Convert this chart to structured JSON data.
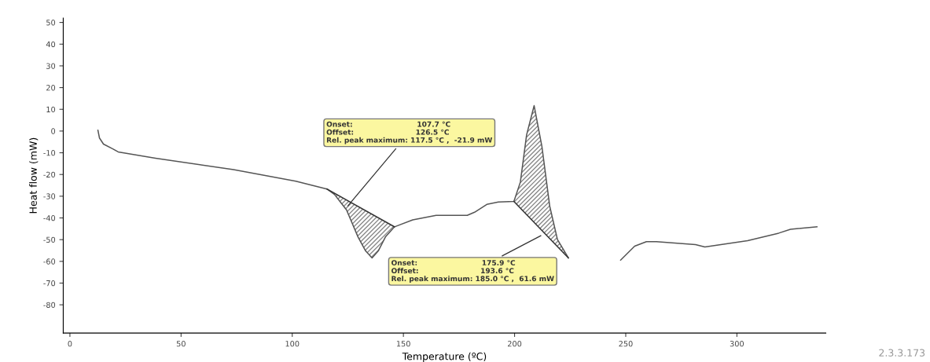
{
  "chart_data": {
    "type": "line",
    "xlabel": "Temperature (ºC)",
    "ylabel": "Heat flow (mW)",
    "xlim": [
      -3,
      340
    ],
    "ylim": [
      -93,
      52
    ],
    "xticks": [
      0,
      50,
      100,
      150,
      200,
      250,
      300
    ],
    "yticks": [
      -80,
      -70,
      -60,
      -50,
      -40,
      -30,
      -20,
      -10,
      0,
      10,
      20,
      30,
      40,
      50
    ],
    "grid": false,
    "series": [
      {
        "color": "#555555",
        "x": [
          12.6,
          13.3,
          15.1,
          19.3,
          21.7,
          38.5,
          73.6,
          101.6,
          115.6,
          119,
          124.4,
          129.6,
          133,
          135.9,
          138.7,
          141.9,
          146,
          154.2,
          164.7,
          178.7,
          182,
          187.5,
          192.7,
          199.7,
          202.6,
          205.4,
          208.8,
          212.3,
          215.8,
          219.3,
          224.2,
          236,
          247.7,
          254,
          259.3,
          263.8,
          281.4,
          285.6,
          304.8,
          318.8,
          324.1,
          336
        ],
        "values": [
          0.4,
          -3.2,
          -6.0,
          -8.2,
          -9.6,
          -12.5,
          -17.8,
          -23.1,
          -26.7,
          -29.2,
          -36.3,
          -48.8,
          -55.2,
          -58.4,
          -55.2,
          -48.8,
          -44.1,
          -40.9,
          -38.8,
          -38.8,
          -37.4,
          -33.8,
          -32.7,
          -32.4,
          -23.5,
          -1.8,
          11.7,
          -7.1,
          -34.5,
          -50,
          -58.4,
          null,
          -59.4,
          -53,
          -50.9,
          -50.9,
          -52.3,
          -53.4,
          -50.5,
          -47,
          -45.2,
          -44.1
        ]
      },
      {
        "type": "line",
        "color": "#333333",
        "x": [
          115.6,
          146
        ],
        "values": [
          -26.7,
          -44.1
        ]
      },
      {
        "type": "line",
        "color": "#333333",
        "x": [
          199.7,
          224.2
        ],
        "values": [
          -32.4,
          -58.4
        ]
      }
    ],
    "annotations": [
      {
        "text": "Onset:                          107.7 °C\nOffset:                         126.5 °C\nRel. peak maximum: 117.5 °C ,  -21.9 mW",
        "x": 124.4,
        "y": -35.2
      },
      {
        "text": "Onset:                          175.9 °C\nOffset:                         193.6 °C\nRel. peak maximum: 185.0 °C ,  61.6 mW",
        "x": 212.7,
        "y": -47.7
      },
      "2.3.3.173"
    ]
  }
}
